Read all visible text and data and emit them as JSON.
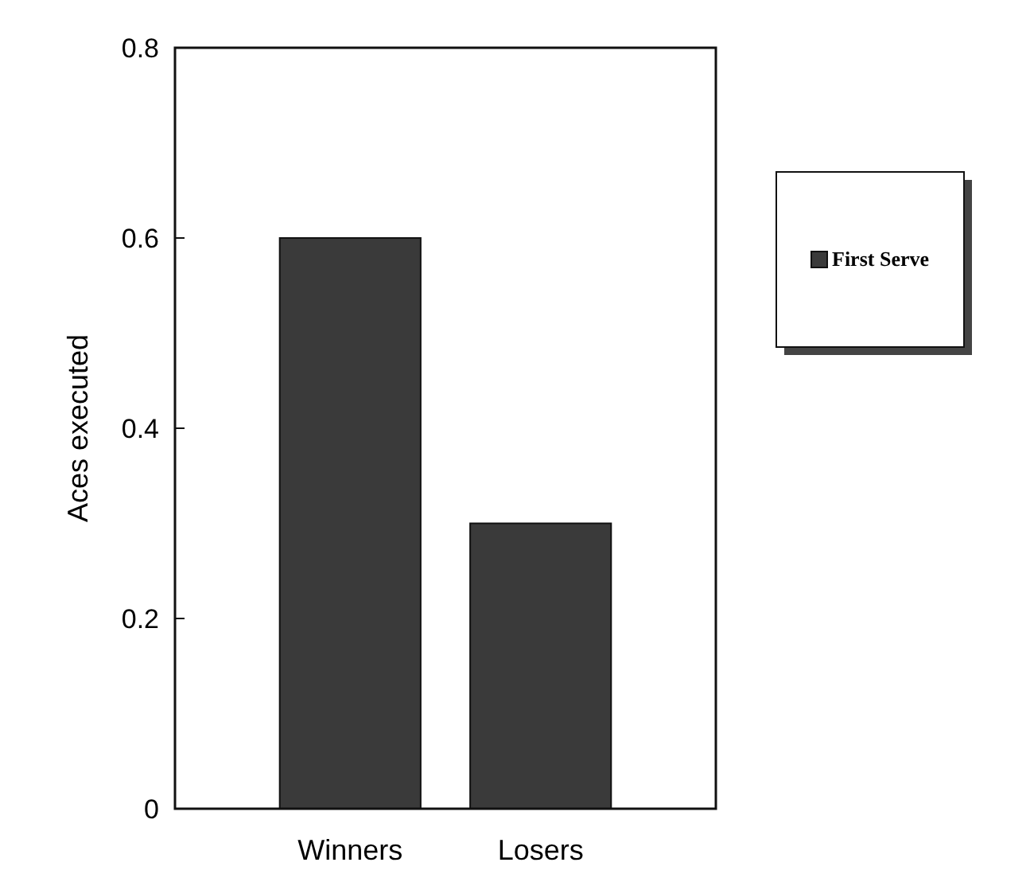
{
  "chart_data": {
    "type": "bar",
    "ylabel": "Aces executed",
    "categories": [
      "Winners",
      "Losers"
    ],
    "series": [
      {
        "name": "First Serve",
        "color": "#3a3a3a",
        "values": [
          0.6,
          0.3
        ]
      }
    ],
    "ylim": [
      0,
      0.8
    ],
    "yticks": [
      0,
      0.2,
      0.4,
      0.6,
      0.8
    ],
    "grid": false,
    "legend": "right"
  }
}
